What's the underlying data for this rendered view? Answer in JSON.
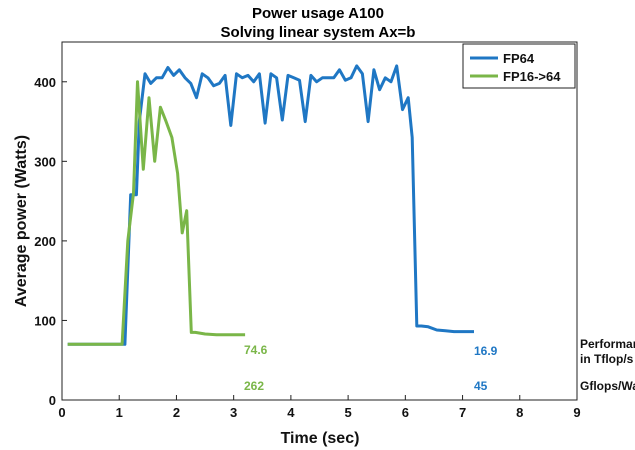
{
  "chart_data": {
    "type": "line",
    "title": "Power usage  A100",
    "subtitle": "Solving linear system Ax=b",
    "xlabel": "Time (sec)",
    "ylabel": "Average power (Watts)",
    "xlim": [
      0,
      9
    ],
    "ylim": [
      0,
      450
    ],
    "xticks": [
      0,
      1,
      2,
      3,
      4,
      5,
      6,
      7,
      8,
      9
    ],
    "yticks": [
      0,
      100,
      200,
      300,
      400
    ],
    "grid": false,
    "legend_position": "top-right",
    "series": [
      {
        "name": "FP64",
        "color": "#1f77c4",
        "x": [
          0.1,
          1.08,
          1.1,
          1.2,
          1.3,
          1.35,
          1.45,
          1.55,
          1.65,
          1.75,
          1.85,
          1.95,
          2.05,
          2.15,
          2.25,
          2.35,
          2.45,
          2.55,
          2.65,
          2.75,
          2.85,
          2.95,
          3.05,
          3.15,
          3.25,
          3.35,
          3.45,
          3.55,
          3.65,
          3.75,
          3.85,
          3.95,
          4.05,
          4.15,
          4.25,
          4.35,
          4.45,
          4.55,
          4.65,
          4.75,
          4.85,
          4.95,
          5.05,
          5.15,
          5.25,
          5.35,
          5.45,
          5.55,
          5.65,
          5.75,
          5.85,
          5.95,
          6.05,
          6.12,
          6.2,
          6.28,
          6.4,
          6.55,
          6.7,
          6.85,
          7.0,
          7.2
        ],
        "values": [
          70,
          70,
          70,
          258,
          258,
          350,
          410,
          398,
          405,
          405,
          418,
          408,
          415,
          405,
          398,
          380,
          410,
          405,
          395,
          398,
          408,
          345,
          410,
          405,
          408,
          400,
          410,
          348,
          410,
          405,
          352,
          408,
          405,
          402,
          350,
          408,
          400,
          405,
          405,
          405,
          415,
          402,
          405,
          420,
          410,
          350,
          415,
          390,
          405,
          400,
          420,
          365,
          380,
          330,
          93,
          93,
          92,
          88,
          87,
          86,
          86,
          86
        ]
      },
      {
        "name": "FP16->64",
        "color": "#7ab648",
        "x": [
          0.1,
          1.0,
          1.05,
          1.15,
          1.25,
          1.32,
          1.42,
          1.52,
          1.62,
          1.72,
          1.82,
          1.92,
          2.02,
          2.1,
          2.18,
          2.26,
          2.33,
          2.5,
          2.7,
          2.9,
          3.1,
          3.2
        ],
        "values": [
          70,
          70,
          70,
          200,
          260,
          400,
          290,
          380,
          300,
          368,
          350,
          330,
          285,
          210,
          238,
          85,
          85,
          83,
          82,
          82,
          82,
          82
        ]
      }
    ],
    "annotations": {
      "fp16_performance": "74.6",
      "fp16_efficiency": "262",
      "fp64_performance": "16.9",
      "fp64_efficiency": "45",
      "performance_label_line1": "Performance",
      "performance_label_line2": "in Tflop/s",
      "efficiency_label": "Gflops/Watts"
    }
  }
}
